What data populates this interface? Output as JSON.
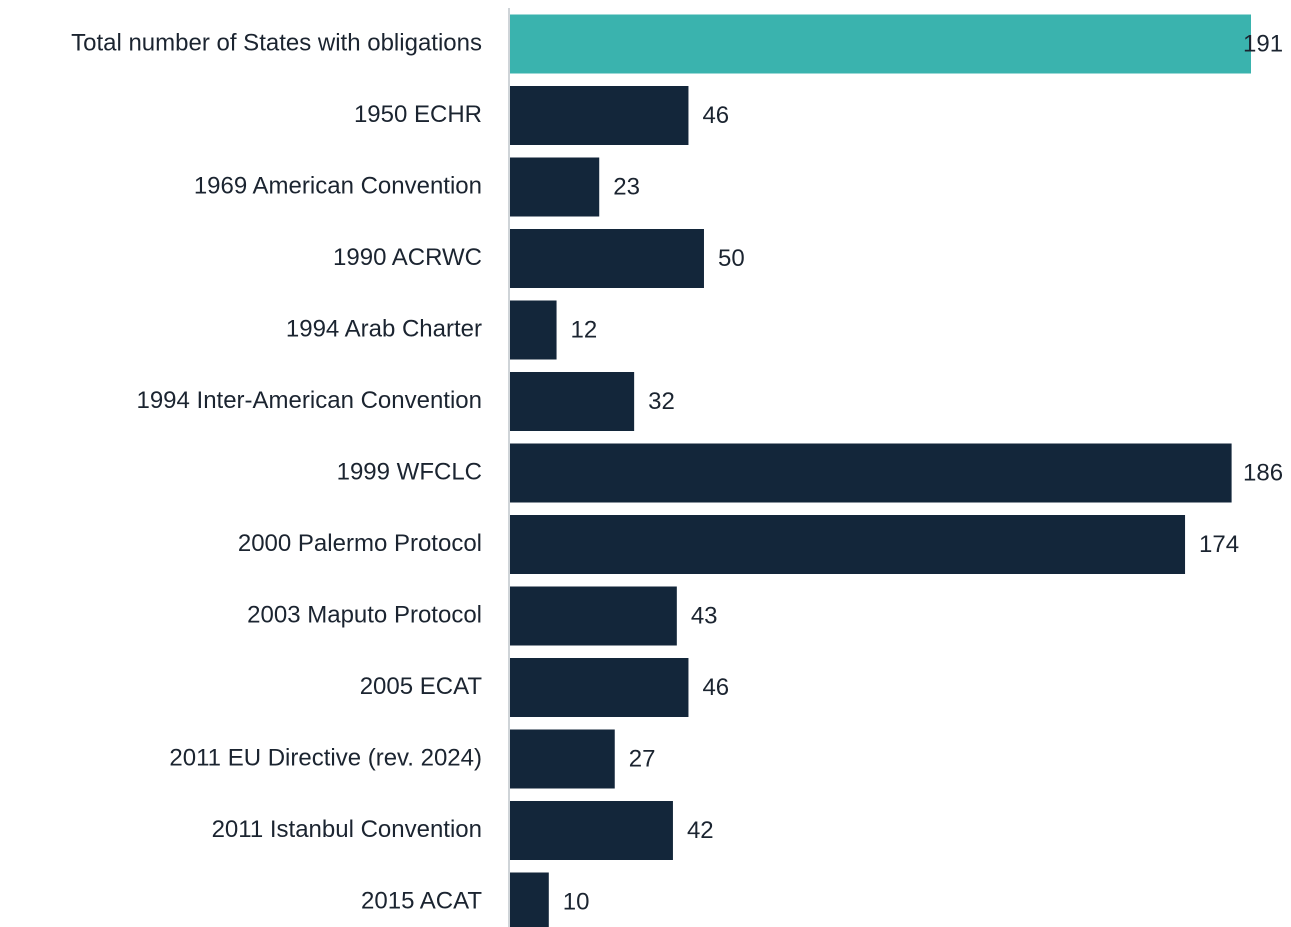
{
  "chart_data": {
    "type": "bar",
    "orientation": "horizontal",
    "categories": [
      "Total number of States with obligations",
      "1950 ECHR",
      "1969 American Convention",
      "1990 ACRWC",
      "1994 Arab Charter",
      "1994 Inter-American Convention",
      "1999 WFCLC",
      "2000 Palermo Protocol",
      "2003 Maputo Protocol",
      "2005 ECAT",
      "2011 EU Directive (rev. 2024)",
      "2011 Istanbul Convention",
      "2015 ACAT"
    ],
    "values": [
      191,
      46,
      23,
      50,
      12,
      32,
      186,
      174,
      43,
      46,
      27,
      42,
      10
    ],
    "colors": [
      "#3ab3ae",
      "#13263a",
      "#13263a",
      "#13263a",
      "#13263a",
      "#13263a",
      "#13263a",
      "#13263a",
      "#13263a",
      "#13263a",
      "#13263a",
      "#13263a",
      "#13263a"
    ]
  }
}
